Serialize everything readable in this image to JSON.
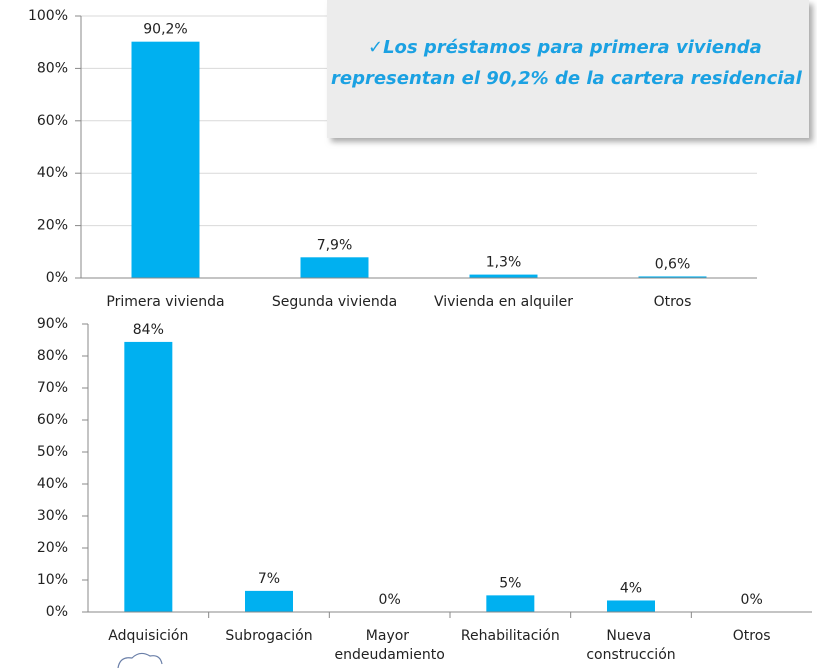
{
  "chart_data": [
    {
      "type": "bar",
      "categories": [
        "Primera vivienda",
        "Segunda vivienda",
        "Vivienda en alquiler",
        "Otros"
      ],
      "values": [
        90.2,
        7.9,
        1.3,
        0.6
      ],
      "value_labels": [
        "90,2%",
        "7,9%",
        "1,3%",
        "0,6%"
      ],
      "color": "#00b0f0",
      "ylim": [
        0,
        100
      ],
      "yticks": [
        {
          "value": 0,
          "label": "0%"
        },
        {
          "value": 20,
          "label": "20%"
        },
        {
          "value": 40,
          "label": "40%"
        },
        {
          "value": 60,
          "label": "60%"
        },
        {
          "value": 80,
          "label": "80%"
        },
        {
          "value": 100,
          "label": "100%"
        }
      ],
      "grid": true,
      "annotation": [
        "✓Los préstamos para primera vivienda",
        "representan el 90,2% de la cartera residencial"
      ]
    },
    {
      "type": "bar",
      "categories": [
        "Adquisición",
        "Subrogación",
        "Mayor endeudamiento",
        "Rehabilitación",
        "Nueva construcción",
        "Otros"
      ],
      "values": [
        84.4,
        6.6,
        0,
        5.2,
        3.6,
        0
      ],
      "value_labels": [
        "84%",
        "7%",
        "0%",
        "5%",
        "4%",
        "0%"
      ],
      "color": "#00b0f0",
      "ylim": [
        0,
        90
      ],
      "yticks": [
        {
          "value": 0,
          "label": "0%"
        },
        {
          "value": 10,
          "label": "10%"
        },
        {
          "value": 20,
          "label": "20%"
        },
        {
          "value": 30,
          "label": "30%"
        },
        {
          "value": 40,
          "label": "40%"
        },
        {
          "value": 50,
          "label": "50%"
        },
        {
          "value": 60,
          "label": "60%"
        },
        {
          "value": 70,
          "label": "70%"
        },
        {
          "value": 80,
          "label": "80%"
        },
        {
          "value": 90,
          "label": "90%"
        }
      ],
      "grid": false
    }
  ]
}
